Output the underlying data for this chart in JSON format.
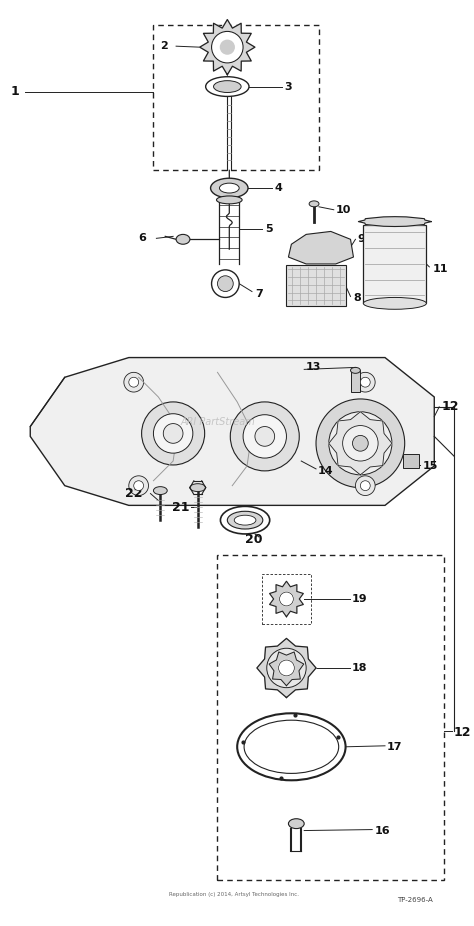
{
  "bg_color": "#ffffff",
  "line_color": "#222222",
  "watermark": "ARI PartStream",
  "watermark_color": "#bbbbbb",
  "copyright": "Republication (c) 2014, Artsyl Technologies Inc.",
  "part_num": "TP-2696-A",
  "figsize": [
    4.74,
    9.26
  ],
  "dpi": 100
}
